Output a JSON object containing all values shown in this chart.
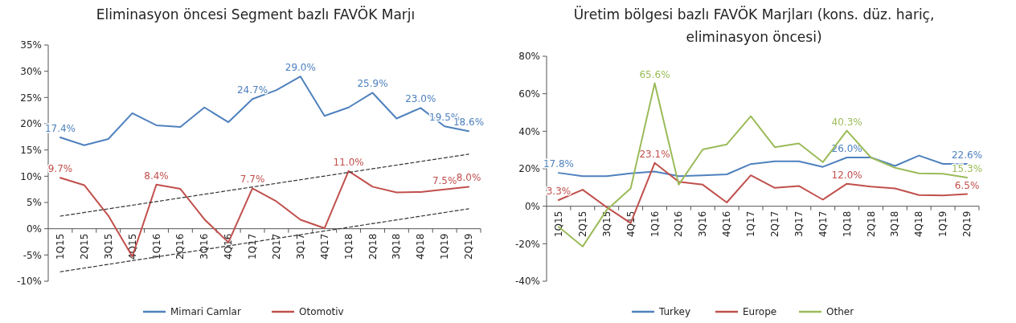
{
  "chart_data": [
    {
      "type": "line",
      "title": "Eliminasyon öncesi Segment bazlı FAVÖK Marjı",
      "categories": [
        "1Q15",
        "2Q15",
        "3Q15",
        "4Q15",
        "1Q16",
        "2Q16",
        "3Q16",
        "4Q16",
        "1Q17",
        "2Q17",
        "3Q17",
        "4Q17",
        "1Q18",
        "2Q18",
        "3Q18",
        "4Q18",
        "1Q19",
        "2Q19"
      ],
      "series": [
        {
          "name": "Mimari Camlar",
          "color": "#4f81bd",
          "values": [
            17.4,
            15.9,
            17.1,
            22.0,
            19.7,
            19.4,
            23.1,
            20.3,
            24.7,
            26.4,
            29.0,
            21.5,
            23.1,
            25.9,
            21.0,
            23.0,
            19.5,
            18.6
          ],
          "value_labels": [
            "17.4%",
            null,
            null,
            null,
            null,
            null,
            null,
            null,
            "24.7%",
            null,
            "29.0%",
            null,
            null,
            "25.9%",
            null,
            "23.0%",
            "19.5%",
            "18.6%"
          ]
        },
        {
          "name": "Otomotiv",
          "color": "#c0504d",
          "values": [
            9.7,
            8.3,
            2.5,
            -5.3,
            8.4,
            7.6,
            1.8,
            -2.6,
            7.7,
            5.2,
            1.7,
            0.1,
            11.0,
            8.0,
            6.9,
            7.0,
            7.5,
            8.0
          ],
          "value_labels": [
            "9.7%",
            null,
            null,
            null,
            "8.4%",
            null,
            null,
            null,
            "7.7%",
            null,
            null,
            null,
            "11.0%",
            null,
            null,
            null,
            "7.5%",
            "8.0%"
          ]
        },
        {
          "type": "line",
          "color": "#333333",
          "line_style": "dashed",
          "x": [
            "1Q15",
            "2Q19"
          ],
          "values": [
            2.4,
            14.2
          ]
        },
        {
          "type": "line",
          "color": "#333333",
          "line_style": "dashed",
          "x": [
            "1Q15",
            "2Q19"
          ],
          "values": [
            -8.2,
            3.8
          ]
        }
      ],
      "ylim": [
        -10,
        35
      ],
      "yticks": [
        {
          "value": -10,
          "label": "-10%"
        },
        {
          "value": -5,
          "label": "-5%"
        },
        {
          "value": 0,
          "label": "0%"
        },
        {
          "value": 5,
          "label": "5%"
        },
        {
          "value": 10,
          "label": "10%"
        },
        {
          "value": 15,
          "label": "15%"
        },
        {
          "value": 20,
          "label": "20%"
        },
        {
          "value": 25,
          "label": "25%"
        },
        {
          "value": 30,
          "label": "30%"
        },
        {
          "value": 35,
          "label": "35%"
        }
      ],
      "legend": "bottom",
      "grid": false,
      "marker": "none",
      "line_style": "solid"
    },
    {
      "type": "line",
      "title": "Üretim bölgesi bazlı FAVÖK Marjları (kons. düz. hariç, eliminasyon öncesi)",
      "categories": [
        "1Q15",
        "2Q15",
        "3Q15",
        "4Q15",
        "1Q16",
        "2Q16",
        "3Q16",
        "4Q16",
        "1Q17",
        "2Q17",
        "3Q17",
        "4Q17",
        "1Q18",
        "2Q18",
        "3Q18",
        "4Q18",
        "1Q19",
        "2Q19"
      ],
      "series": [
        {
          "name": "Turkey",
          "color": "#4f81bd",
          "values": [
            17.8,
            16,
            16,
            17.5,
            18.5,
            16,
            16.5,
            17,
            22.5,
            24,
            24,
            21,
            26.0,
            26,
            21.5,
            27,
            22.6,
            22.6
          ],
          "value_labels": [
            "17.8%",
            null,
            null,
            null,
            null,
            null,
            null,
            null,
            null,
            null,
            null,
            null,
            "26.0%",
            null,
            null,
            null,
            null,
            "22.6%"
          ]
        },
        {
          "name": "Europe",
          "color": "#c0504d",
          "values": [
            3.3,
            8.8,
            -0.5,
            -9,
            23.1,
            13,
            11.5,
            2,
            16.5,
            9.8,
            10.8,
            3.5,
            12.0,
            10.5,
            9.5,
            6,
            5.7,
            6.5
          ],
          "value_labels": [
            "3.3%",
            null,
            null,
            null,
            "23.1%",
            null,
            null,
            null,
            null,
            null,
            null,
            null,
            "12.0%",
            null,
            null,
            null,
            null,
            "6.5%"
          ]
        },
        {
          "name": "Other",
          "color": "#9bbb59",
          "values": [
            -11,
            -21.5,
            -2,
            9.5,
            65.6,
            11.5,
            30.3,
            33,
            48,
            31.5,
            33.5,
            23.5,
            40.3,
            26,
            20.5,
            17.5,
            17.3,
            15.3
          ],
          "value_labels": [
            null,
            null,
            null,
            null,
            "65.6%",
            null,
            null,
            null,
            null,
            null,
            null,
            null,
            "40.3%",
            null,
            null,
            null,
            null,
            "15.3%"
          ]
        }
      ],
      "ylim": [
        -40,
        80
      ],
      "yticks": [
        {
          "value": -40,
          "label": "-40%"
        },
        {
          "value": -20,
          "label": "-20%"
        },
        {
          "value": 0,
          "label": "0%"
        },
        {
          "value": 20,
          "label": "20%"
        },
        {
          "value": 40,
          "label": "40%"
        },
        {
          "value": 60,
          "label": "60%"
        },
        {
          "value": 80,
          "label": "80%"
        }
      ],
      "legend": "bottom",
      "grid": false,
      "marker": "none",
      "line_style": "solid"
    }
  ]
}
